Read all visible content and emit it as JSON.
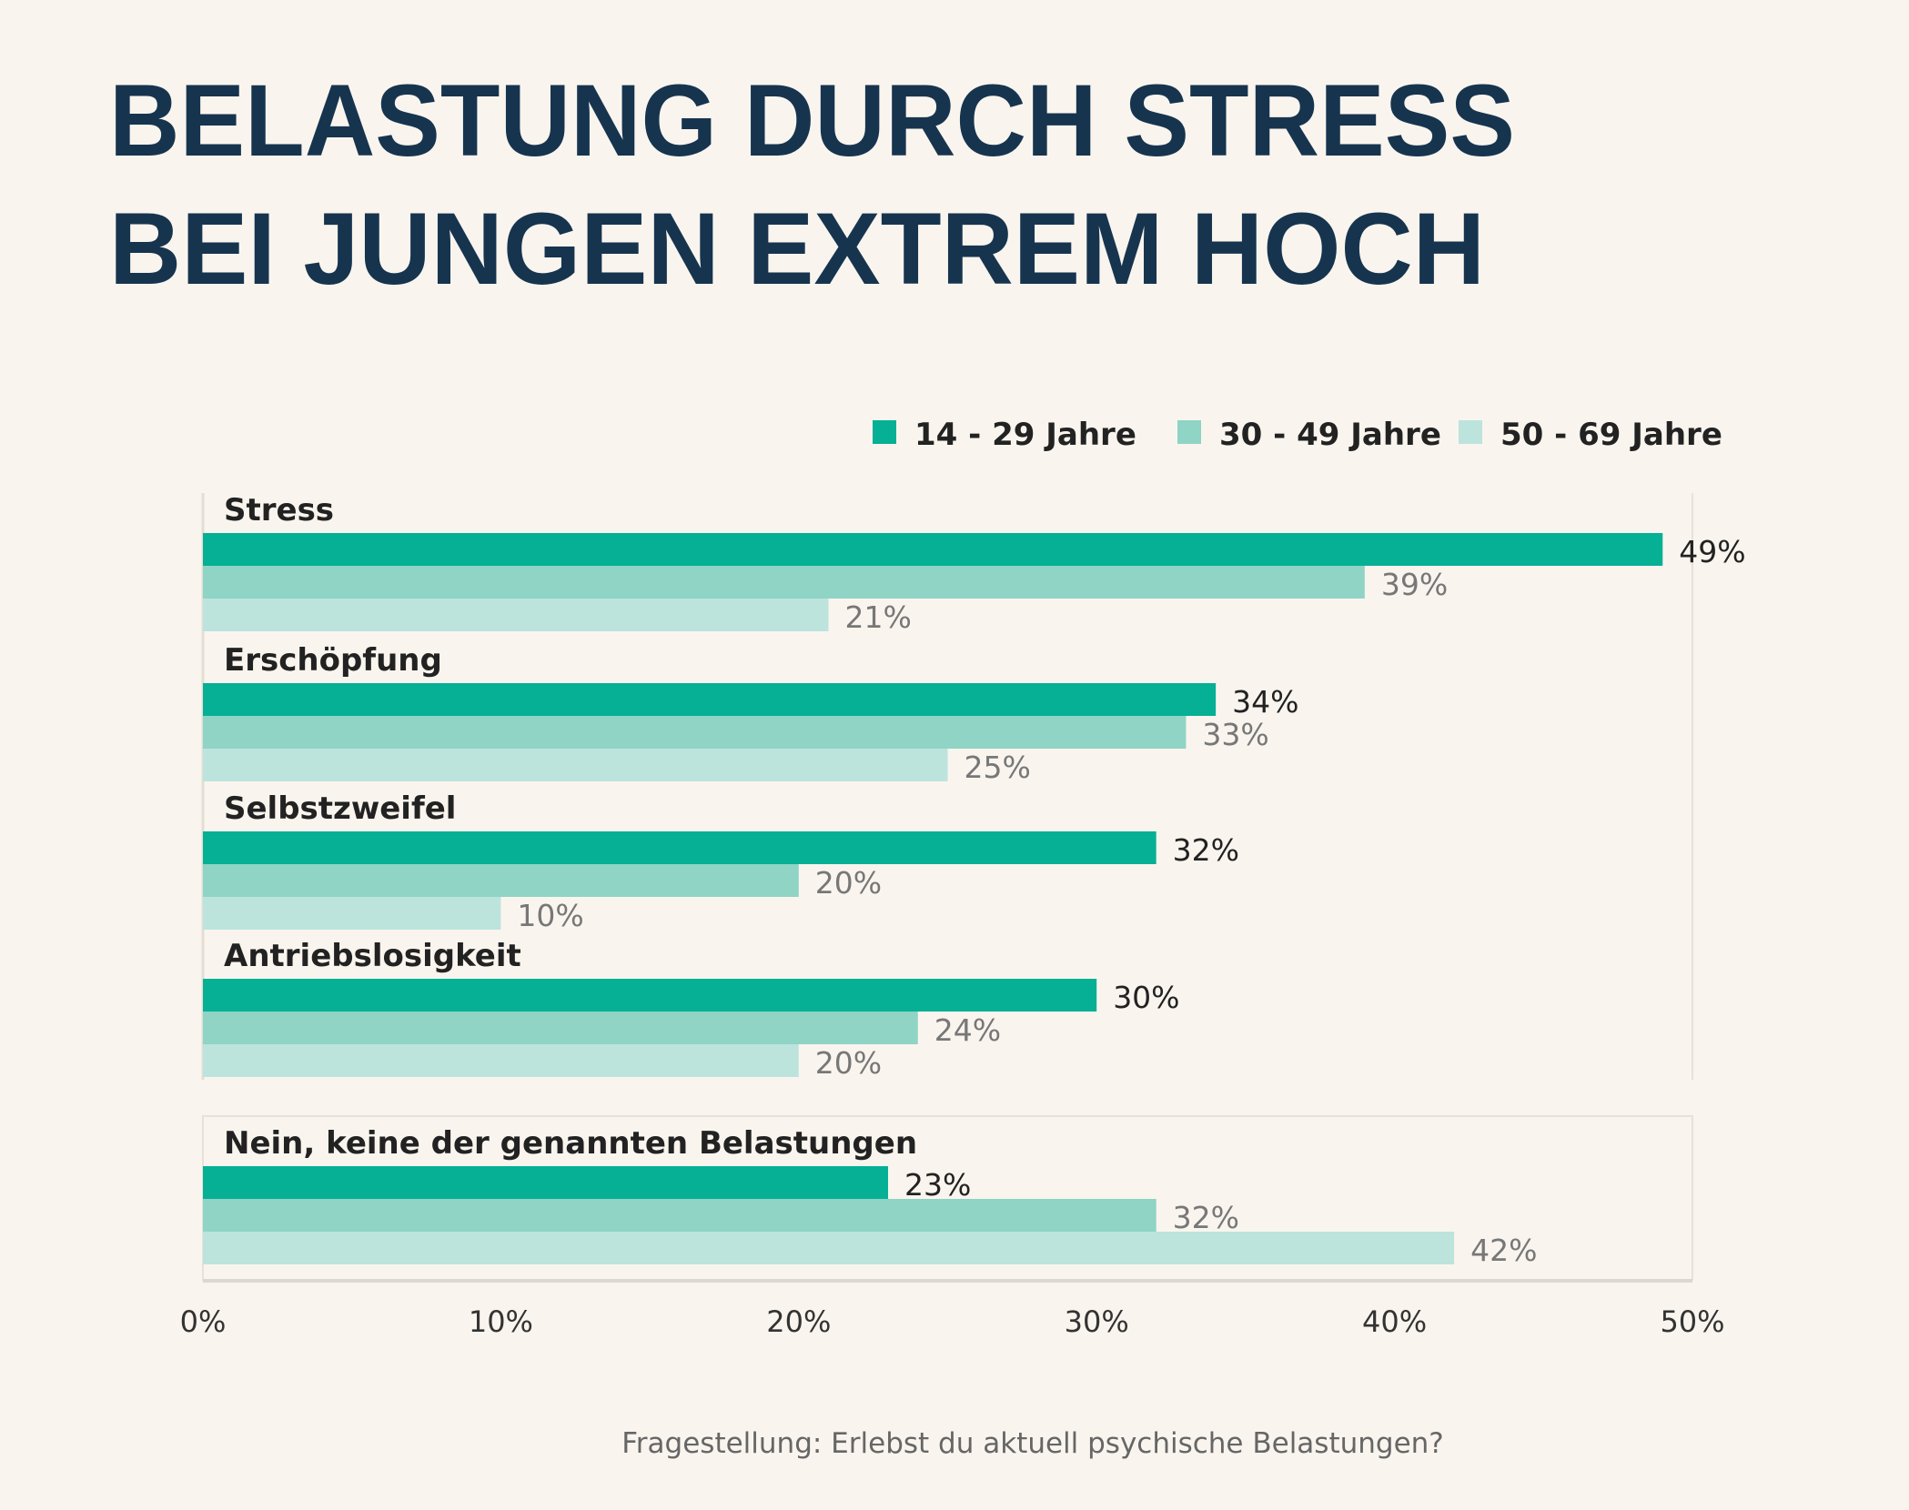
{
  "chart_data": {
    "type": "bar",
    "orientation": "horizontal",
    "title": [
      "BELASTUNG DURCH STRESS",
      "BEI JUNGEN EXTREM HOCH"
    ],
    "categories": [
      "Stress",
      "Erschöpfung",
      "Selbstzweifel",
      "Antriebslosigkeit",
      "Nein, keine der genannten Belastungen"
    ],
    "series": [
      {
        "name": "14 - 29 Jahre",
        "color": "#05b095",
        "values": [
          49,
          34,
          32,
          30,
          23
        ]
      },
      {
        "name": "30 - 49 Jahre",
        "color": "#8fd4c5",
        "values": [
          39,
          33,
          20,
          24,
          32
        ]
      },
      {
        "name": "50 - 69 Jahre",
        "color": "#bce4dd",
        "values": [
          21,
          25,
          10,
          20,
          42
        ]
      }
    ],
    "value_labels": [
      [
        "49%",
        "34%",
        "32%",
        "30%",
        "23%"
      ],
      [
        "39%",
        "33%",
        "20%",
        "24%",
        "32%"
      ],
      [
        "21%",
        "25%",
        "10%",
        "20%",
        "42%"
      ]
    ],
    "xlim": [
      0,
      50
    ],
    "xticks": [
      "0%",
      "10%",
      "20%",
      "30%",
      "40%",
      "50%"
    ],
    "xlabel": "",
    "ylabel": "",
    "legend_position": "top-right",
    "grid": false,
    "footnote": "Fragestellung: Erlebst du aktuell psychische Belastungen?"
  }
}
